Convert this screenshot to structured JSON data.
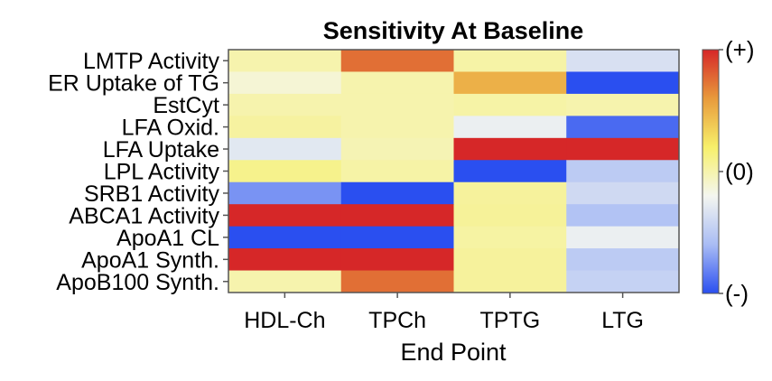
{
  "chart_data": {
    "type": "heatmap",
    "title": "Sensitivity At Baseline",
    "xlabel": "End Point",
    "ylabel": "",
    "columns": [
      "HDL-Ch",
      "TPCh",
      "TPTG",
      "LTG"
    ],
    "rows": [
      "LMTP Activity",
      "ER Uptake of TG",
      "EstCyt",
      "LFA Oxid.",
      "LFA Uptake",
      "LPL Activity",
      "SRB1 Activity",
      "ABCA1 Activity",
      "ApoA1 CL",
      "ApoA1 Synth.",
      "ApoB100 Synth."
    ],
    "values": [
      [
        0.0,
        0.75,
        0.02,
        -0.35
      ],
      [
        -0.12,
        0.0,
        0.5,
        -1.0
      ],
      [
        0.0,
        0.0,
        0.02,
        0.0
      ],
      [
        0.04,
        0.0,
        -0.25,
        -0.9
      ],
      [
        -0.3,
        -0.02,
        1.0,
        1.0
      ],
      [
        0.1,
        0.02,
        -1.0,
        -0.5
      ],
      [
        -0.75,
        -1.0,
        0.05,
        -0.4
      ],
      [
        1.0,
        1.0,
        0.06,
        -0.55
      ],
      [
        -1.0,
        -1.0,
        0.03,
        -0.25
      ],
      [
        1.0,
        1.0,
        0.05,
        -0.5
      ],
      [
        0.0,
        0.75,
        0.05,
        -0.45
      ]
    ],
    "zlim": [
      -1,
      1
    ],
    "colorbar": {
      "labels": [
        "(+)",
        "(0)",
        "(-)"
      ],
      "values": [
        1,
        0,
        -1
      ],
      "colors": [
        "#d62728",
        "#e89a3c",
        "#f7f06a",
        "#f4f6f0",
        "#a9bcf4",
        "#2a4ff0"
      ]
    }
  }
}
